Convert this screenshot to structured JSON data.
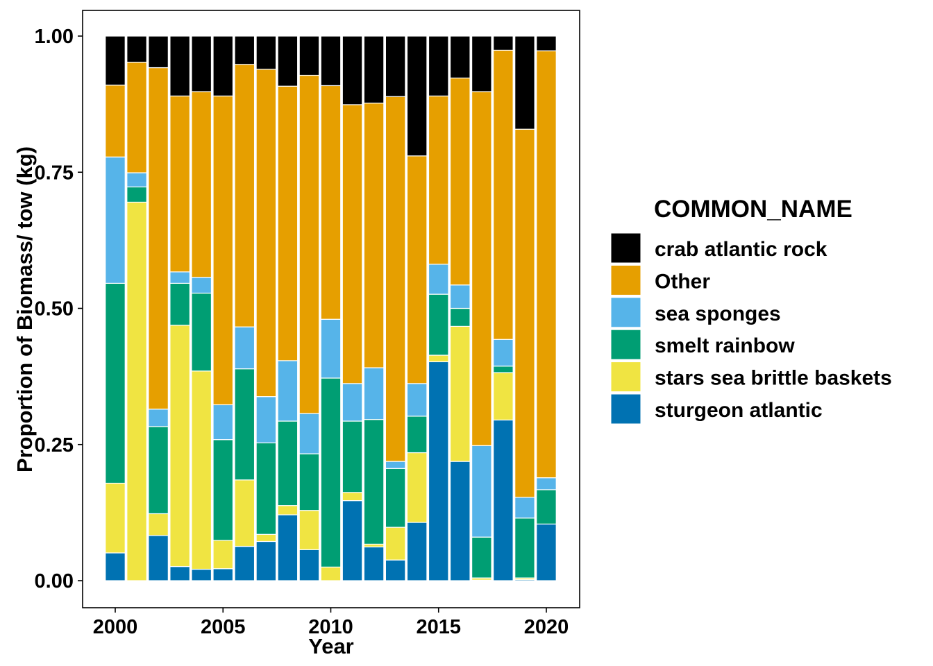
{
  "chart_data": {
    "type": "bar",
    "stacked": true,
    "xlabel": "Year",
    "ylabel": "Proportion of Biomass/ tow (kg)",
    "ylim": [
      0,
      1
    ],
    "xlim": [
      1999.4,
      2021.6
    ],
    "x_ticks": [
      2000,
      2005,
      2010,
      2015,
      2020
    ],
    "y_ticks": [
      {
        "value": 0,
        "label": "0.00"
      },
      {
        "value": 0.25,
        "label": "0.25"
      },
      {
        "value": 0.5,
        "label": "0.50"
      },
      {
        "value": 0.75,
        "label": "0.75"
      },
      {
        "value": 1,
        "label": "1.00"
      }
    ],
    "grid": false,
    "legend_position": "right",
    "legend_title": "COMMON_NAME",
    "x": [
      2000,
      2001,
      2002,
      2003,
      2004,
      2005,
      2006,
      2007,
      2008,
      2009,
      2010,
      2011,
      2012,
      2013,
      2014,
      2015,
      2016,
      2017,
      2018,
      2019,
      2020
    ],
    "stack_order": "first series on top",
    "series": [
      {
        "name": "crab atlantic rock",
        "color": "#000000",
        "values": [
          0.09,
          0.048,
          0.058,
          0.11,
          0.102,
          0.11,
          0.052,
          0.061,
          0.092,
          0.072,
          0.091,
          0.126,
          0.123,
          0.111,
          0.22,
          0.11,
          0.077,
          0.102,
          0.026,
          0.171,
          0.027
        ]
      },
      {
        "name": "Other",
        "color": "#E69F00",
        "values": [
          0.132,
          0.203,
          0.627,
          0.323,
          0.341,
          0.567,
          0.482,
          0.601,
          0.504,
          0.621,
          0.429,
          0.512,
          0.486,
          0.67,
          0.418,
          0.309,
          0.38,
          0.65,
          0.531,
          0.676,
          0.784
        ]
      },
      {
        "name": "sea sponges",
        "color": "#56B4E9",
        "values": [
          0.232,
          0.026,
          0.032,
          0.021,
          0.029,
          0.064,
          0.077,
          0.085,
          0.111,
          0.074,
          0.108,
          0.069,
          0.095,
          0.013,
          0.06,
          0.055,
          0.043,
          0.168,
          0.049,
          0.038,
          0.022
        ]
      },
      {
        "name": "smelt rainbow",
        "color": "#009E73",
        "values": [
          0.367,
          0.028,
          0.16,
          0.077,
          0.143,
          0.185,
          0.204,
          0.168,
          0.155,
          0.104,
          0.347,
          0.131,
          0.229,
          0.108,
          0.067,
          0.112,
          0.033,
          0.075,
          0.012,
          0.11,
          0.063
        ]
      },
      {
        "name": "stars sea brittle baskets",
        "color": "#F0E442",
        "values": [
          0.128,
          0.695,
          0.04,
          0.443,
          0.364,
          0.052,
          0.122,
          0.013,
          0.017,
          0.072,
          0.025,
          0.015,
          0.005,
          0.06,
          0.128,
          0.012,
          0.248,
          0.004,
          0.087,
          0.003,
          0.0
        ]
      },
      {
        "name": "sturgeon atlantic",
        "color": "#0072B2",
        "values": [
          0.051,
          0.0,
          0.083,
          0.026,
          0.021,
          0.022,
          0.063,
          0.072,
          0.121,
          0.057,
          0.0,
          0.147,
          0.062,
          0.038,
          0.107,
          0.402,
          0.219,
          0.001,
          0.295,
          0.002,
          0.104
        ]
      }
    ]
  }
}
